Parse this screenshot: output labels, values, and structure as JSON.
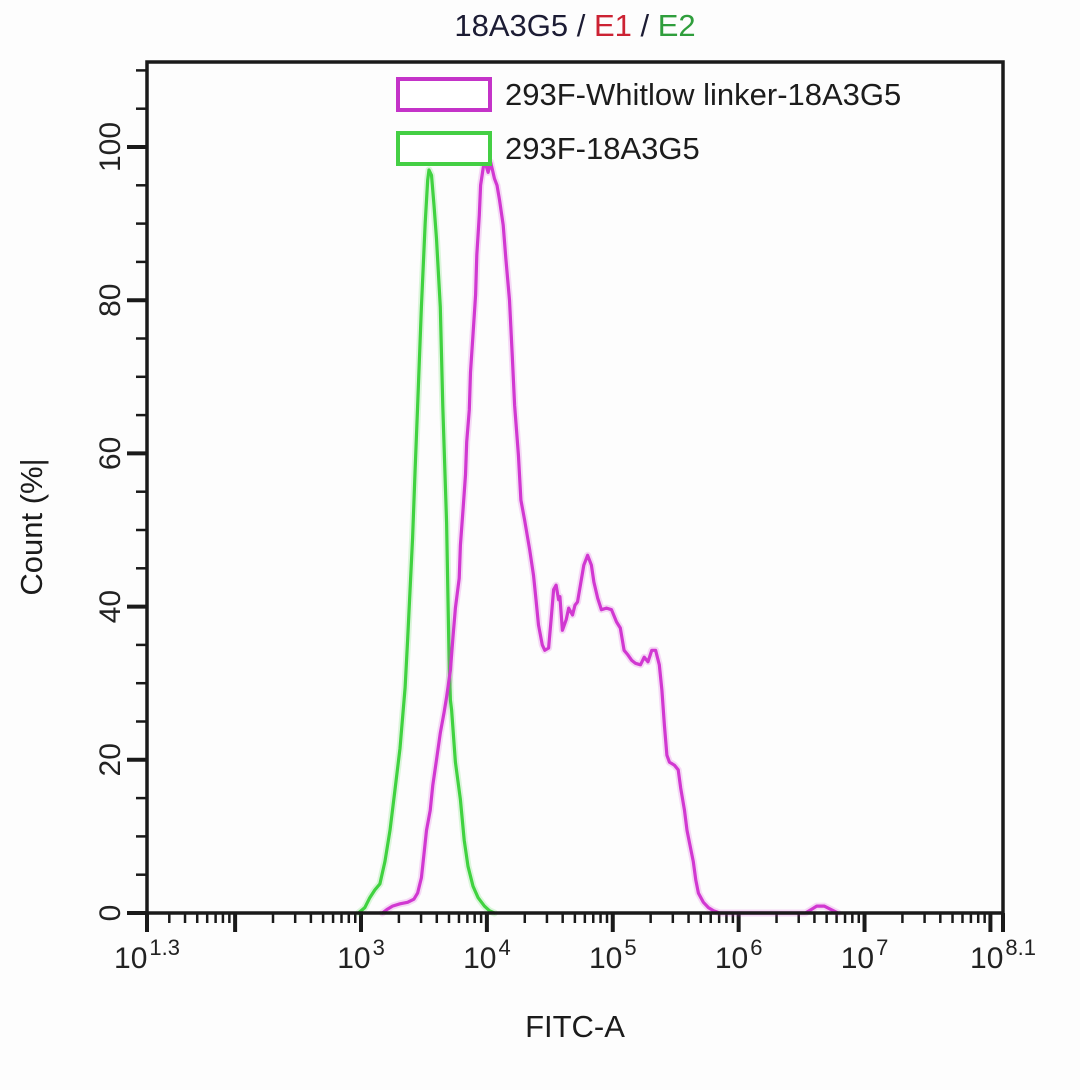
{
  "figure": {
    "background": "#fdfdfd"
  },
  "title": {
    "parts": [
      {
        "text": "18A3G5 / ",
        "color": "#1c1c34"
      },
      {
        "text": "E1",
        "color": "#cc2233"
      },
      {
        "text": " / ",
        "color": "#1c1c34"
      },
      {
        "text": "E2",
        "color": "#2f9e3c"
      }
    ]
  },
  "chart_data": {
    "type": "line",
    "subtype": "flow-cytometry-histogram-overlay",
    "title": "18A3G5 / E1 / E2",
    "xlabel": "FITC-A",
    "ylabel": "Count (%|",
    "x_scale": "log10",
    "xlim_log10": [
      1.3,
      8.1
    ],
    "ylim": [
      0,
      111
    ],
    "grid": false,
    "axis_color": "#1a1a1a",
    "tick_label_color": "#222222",
    "x_ticks": [
      {
        "log": 1.3,
        "base": "10",
        "exp": "1.3"
      },
      {
        "log": 3,
        "base": "10",
        "exp": "3"
      },
      {
        "log": 4,
        "base": "10",
        "exp": "4"
      },
      {
        "log": 5,
        "base": "10",
        "exp": "5"
      },
      {
        "log": 6,
        "base": "10",
        "exp": "6"
      },
      {
        "log": 7,
        "base": "10",
        "exp": "7"
      },
      {
        "log": 8.1,
        "base": "10",
        "exp": "8.1"
      }
    ],
    "x_major_unlabeled_logs": [
      2,
      3,
      4,
      5,
      6,
      7,
      8
    ],
    "y_ticks": [
      {
        "value": 0,
        "label": "0"
      },
      {
        "value": 20,
        "label": "20"
      },
      {
        "value": 40,
        "label": "40"
      },
      {
        "value": 60,
        "label": "60"
      },
      {
        "value": 80,
        "label": "80"
      },
      {
        "value": 100,
        "label": "100"
      }
    ],
    "y_minor": {
      "step": 5,
      "max": 110
    },
    "legend": {
      "position": "top-inside",
      "entries": [
        {
          "label": "293F-Whitlow linker-18A3G5",
          "color": "#c433c8",
          "text_color": "#1c1c1c"
        },
        {
          "label": "293F-18A3G5",
          "color": "#44cf44",
          "text_color": "#1c1c1c"
        }
      ]
    },
    "series": [
      {
        "name": "293F-18A3G5",
        "color": "#40d240",
        "points": [
          [
            2.98,
            0
          ],
          [
            3.03,
            0.7
          ],
          [
            3.07,
            2.0
          ],
          [
            3.11,
            3.0
          ],
          [
            3.15,
            3.8
          ],
          [
            3.19,
            6.7
          ],
          [
            3.23,
            10.8
          ],
          [
            3.27,
            16.1
          ],
          [
            3.31,
            21.5
          ],
          [
            3.35,
            29.4
          ],
          [
            3.37,
            35.6
          ],
          [
            3.41,
            49.0
          ],
          [
            3.43,
            57.8
          ],
          [
            3.45,
            66.1
          ],
          [
            3.48,
            79.1
          ],
          [
            3.51,
            90.1
          ],
          [
            3.53,
            95.7
          ],
          [
            3.54,
            97.0
          ],
          [
            3.56,
            96.3
          ],
          [
            3.58,
            92.4
          ],
          [
            3.6,
            88.0
          ],
          [
            3.63,
            79.1
          ],
          [
            3.65,
            66.1
          ],
          [
            3.68,
            50.9
          ],
          [
            3.7,
            33.0
          ],
          [
            3.71,
            27.8
          ],
          [
            3.72,
            26.5
          ],
          [
            3.75,
            19.7
          ],
          [
            3.79,
            14.8
          ],
          [
            3.82,
            9.5
          ],
          [
            3.85,
            6.1
          ],
          [
            3.89,
            3.5
          ],
          [
            3.93,
            2.0
          ],
          [
            3.98,
            0.9
          ],
          [
            4.02,
            0.3
          ],
          [
            4.06,
            0
          ]
        ]
      },
      {
        "name": "293F-Whitlow linker-18A3G5",
        "color": "#d138d1",
        "points": [
          [
            3.17,
            0
          ],
          [
            3.21,
            0.5
          ],
          [
            3.25,
            0.9
          ],
          [
            3.31,
            1.2
          ],
          [
            3.37,
            1.4
          ],
          [
            3.42,
            1.8
          ],
          [
            3.45,
            2.6
          ],
          [
            3.48,
            4.6
          ],
          [
            3.5,
            7.6
          ],
          [
            3.52,
            10.8
          ],
          [
            3.55,
            13.4
          ],
          [
            3.57,
            16.7
          ],
          [
            3.6,
            20.0
          ],
          [
            3.63,
            23.5
          ],
          [
            3.66,
            26.2
          ],
          [
            3.68,
            28.2
          ],
          [
            3.71,
            31.7
          ],
          [
            3.73,
            35.9
          ],
          [
            3.75,
            39.8
          ],
          [
            3.78,
            43.7
          ],
          [
            3.79,
            48.0
          ],
          [
            3.81,
            52.6
          ],
          [
            3.83,
            57.2
          ],
          [
            3.84,
            61.5
          ],
          [
            3.86,
            65.7
          ],
          [
            3.87,
            70.6
          ],
          [
            3.89,
            75.5
          ],
          [
            3.91,
            80.7
          ],
          [
            3.92,
            85.9
          ],
          [
            3.94,
            91.1
          ],
          [
            3.95,
            95.0
          ],
          [
            3.98,
            98.3
          ],
          [
            4.01,
            96.7
          ],
          [
            4.03,
            98.0
          ],
          [
            4.06,
            95.9
          ],
          [
            4.08,
            95.0
          ],
          [
            4.1,
            93.1
          ],
          [
            4.13,
            89.8
          ],
          [
            4.15,
            85.5
          ],
          [
            4.18,
            80.0
          ],
          [
            4.2,
            73.2
          ],
          [
            4.22,
            66.3
          ],
          [
            4.25,
            59.8
          ],
          [
            4.27,
            53.9
          ],
          [
            4.3,
            51.3
          ],
          [
            4.34,
            47.4
          ],
          [
            4.37,
            44.1
          ],
          [
            4.39,
            40.9
          ],
          [
            4.41,
            37.6
          ],
          [
            4.44,
            35.0
          ],
          [
            4.46,
            34.3
          ],
          [
            4.49,
            34.6
          ],
          [
            4.51,
            38.3
          ],
          [
            4.53,
            42.2
          ],
          [
            4.55,
            42.8
          ],
          [
            4.57,
            40.9
          ],
          [
            4.58,
            41.3
          ],
          [
            4.6,
            36.9
          ],
          [
            4.63,
            38.3
          ],
          [
            4.65,
            39.8
          ],
          [
            4.68,
            38.9
          ],
          [
            4.7,
            40.2
          ],
          [
            4.72,
            40.6
          ],
          [
            4.75,
            43.5
          ],
          [
            4.77,
            45.4
          ],
          [
            4.8,
            46.7
          ],
          [
            4.83,
            45.4
          ],
          [
            4.85,
            43.2
          ],
          [
            4.88,
            41.1
          ],
          [
            4.91,
            39.6
          ],
          [
            4.95,
            39.8
          ],
          [
            4.99,
            39.6
          ],
          [
            5.03,
            38.0
          ],
          [
            5.06,
            37.2
          ],
          [
            5.09,
            34.3
          ],
          [
            5.12,
            33.7
          ],
          [
            5.15,
            33.0
          ],
          [
            5.18,
            32.6
          ],
          [
            5.22,
            32.4
          ],
          [
            5.25,
            33.4
          ],
          [
            5.28,
            32.8
          ],
          [
            5.31,
            34.3
          ],
          [
            5.34,
            34.3
          ],
          [
            5.37,
            32.4
          ],
          [
            5.39,
            29.1
          ],
          [
            5.41,
            24.5
          ],
          [
            5.43,
            20.6
          ],
          [
            5.45,
            19.7
          ],
          [
            5.49,
            19.3
          ],
          [
            5.52,
            18.7
          ],
          [
            5.54,
            16.3
          ],
          [
            5.57,
            13.4
          ],
          [
            5.59,
            10.8
          ],
          [
            5.61,
            9.1
          ],
          [
            5.64,
            6.7
          ],
          [
            5.66,
            4.3
          ],
          [
            5.68,
            2.6
          ],
          [
            5.72,
            1.4
          ],
          [
            5.76,
            0.7
          ],
          [
            5.8,
            0.3
          ],
          [
            5.85,
            0
          ],
          [
            6.53,
            0
          ],
          [
            6.58,
            0.5
          ],
          [
            6.62,
            0.9
          ],
          [
            6.68,
            0.9
          ],
          [
            6.74,
            0.4
          ],
          [
            6.79,
            0
          ]
        ]
      }
    ]
  }
}
